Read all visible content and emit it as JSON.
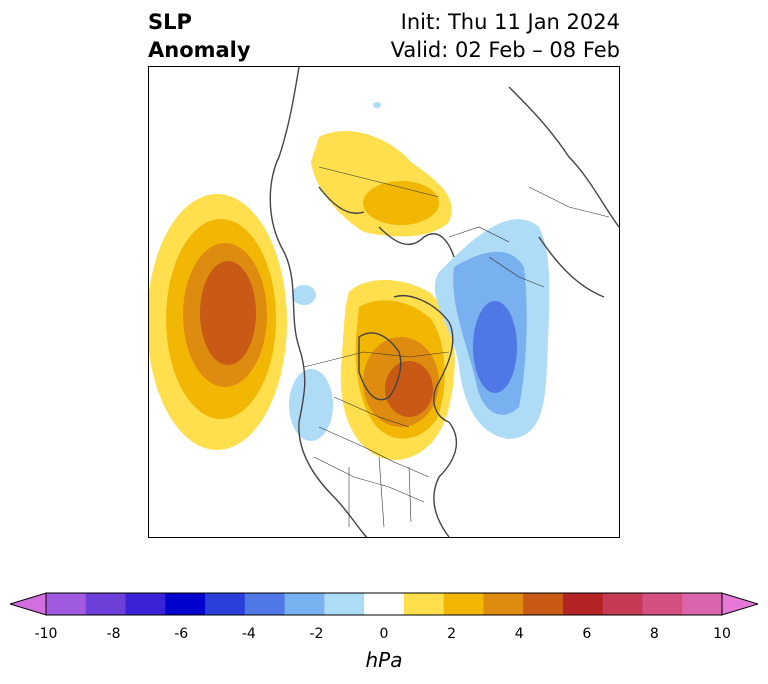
{
  "title": {
    "left_line1": "SLP",
    "left_line2": "Anomaly",
    "init": "Init: Thu 11 Jan 2024",
    "valid": "Valid: 02 Feb – 08 Feb"
  },
  "colorbar": {
    "units": "hPa",
    "ticks": [
      "-10",
      "-8",
      "-6",
      "-4",
      "-2",
      "0",
      "2",
      "4",
      "6",
      "8",
      "10"
    ],
    "colors": [
      "#d36ee0",
      "#a05ae0",
      "#6e3fd9",
      "#3a22d6",
      "#0000cc",
      "#2a3fd9",
      "#4f78e6",
      "#78b0f0",
      "#aedcf7",
      "#ffffff",
      "#ffdf4d",
      "#f2b705",
      "#de8c10",
      "#c85a15",
      "#b42424",
      "#c73a55",
      "#d35080",
      "#dc64ad",
      "#e678d8"
    ]
  }
}
